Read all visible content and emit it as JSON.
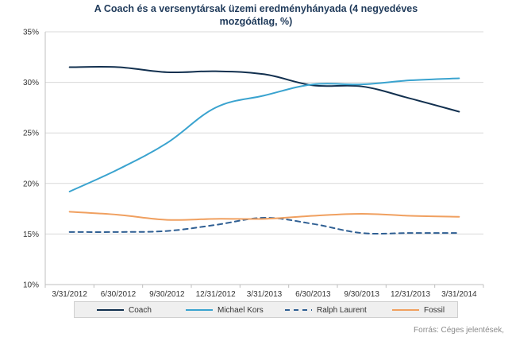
{
  "chart_data": {
    "type": "line",
    "title_line1": "A Coach és a versenytársak üzemi eredményhányada (4 negyedéves",
    "title_line2": "mozgóátlag, %)",
    "categories": [
      "3/31/2012",
      "6/30/2012",
      "9/30/2012",
      "12/31/2012",
      "3/31/2013",
      "6/30/2013",
      "9/30/2013",
      "12/31/2013",
      "3/31/2014"
    ],
    "y_ticks": [
      "35%",
      "30%",
      "25%",
      "20%",
      "15%",
      "10%"
    ],
    "ylim": [
      10,
      35
    ],
    "grid": true,
    "legend_position": "bottom",
    "series": [
      {
        "name": "Coach",
        "color": "#12304f",
        "dash": false,
        "values": [
          31.5,
          31.5,
          31.0,
          31.1,
          30.8,
          29.7,
          29.6,
          28.4,
          27.1
        ]
      },
      {
        "name": "Michael Kors",
        "color": "#3aa3cf",
        "dash": false,
        "values": [
          19.2,
          21.4,
          24.0,
          27.5,
          28.7,
          29.8,
          29.8,
          30.2,
          30.4
        ]
      },
      {
        "name": "Ralph Laurent",
        "color": "#2f5f93",
        "dash": true,
        "values": [
          15.2,
          15.2,
          15.3,
          15.9,
          16.6,
          16.0,
          15.1,
          15.1,
          15.1
        ]
      },
      {
        "name": "Fossil",
        "color": "#f0a060",
        "dash": false,
        "values": [
          17.2,
          16.9,
          16.4,
          16.5,
          16.5,
          16.8,
          17.0,
          16.8,
          16.7
        ]
      }
    ]
  },
  "source": "Forrás: Céges jelentések,"
}
